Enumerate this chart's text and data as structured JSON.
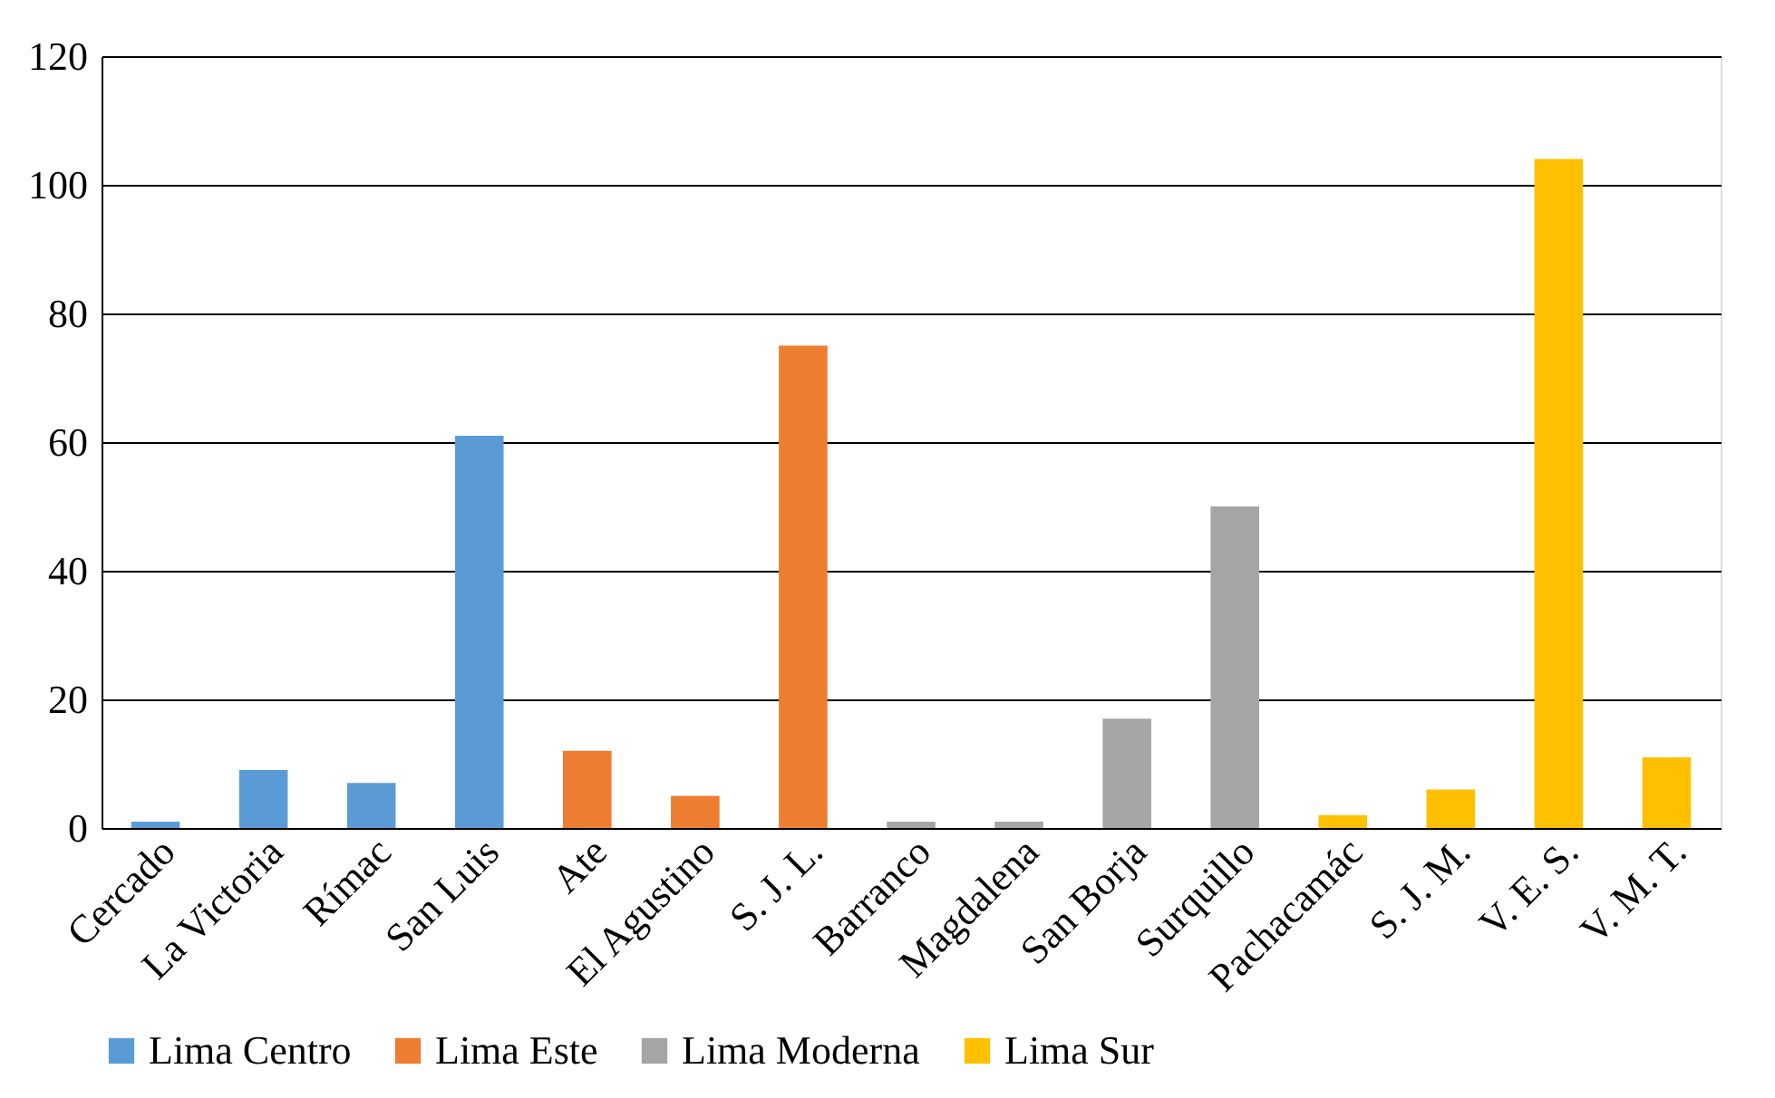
{
  "chart_data": {
    "type": "bar",
    "categories": [
      "Cercado",
      "La Victoria",
      "Rímac",
      "San Luis",
      "Ate",
      "El Agustino",
      "S. J. L.",
      "Barranco",
      "Magdalena",
      "San Borja",
      "Surquillo",
      "Pachacamác",
      "S. J. M.",
      "V. E. S.",
      "V. M. T."
    ],
    "series": [
      {
        "name": "Lima Centro",
        "color": "#5b9bd5",
        "values": [
          1,
          9,
          7,
          61,
          null,
          null,
          null,
          null,
          null,
          null,
          null,
          null,
          null,
          null,
          null
        ]
      },
      {
        "name": "Lima Este",
        "color": "#ed7d31",
        "values": [
          null,
          null,
          null,
          null,
          12,
          5,
          75,
          null,
          null,
          null,
          null,
          null,
          null,
          null,
          null
        ]
      },
      {
        "name": "Lima Moderna",
        "color": "#a5a5a5",
        "values": [
          null,
          null,
          null,
          null,
          null,
          null,
          null,
          1,
          1,
          17,
          50,
          null,
          null,
          null,
          null
        ]
      },
      {
        "name": "Lima Sur",
        "color": "#ffc000",
        "values": [
          null,
          null,
          null,
          null,
          null,
          null,
          null,
          null,
          null,
          null,
          null,
          2,
          6,
          104,
          11
        ]
      }
    ],
    "ylim": [
      0,
      120
    ],
    "yticks": [
      0,
      20,
      40,
      60,
      80,
      100,
      120
    ],
    "grid": "y",
    "legend": "bottom"
  }
}
